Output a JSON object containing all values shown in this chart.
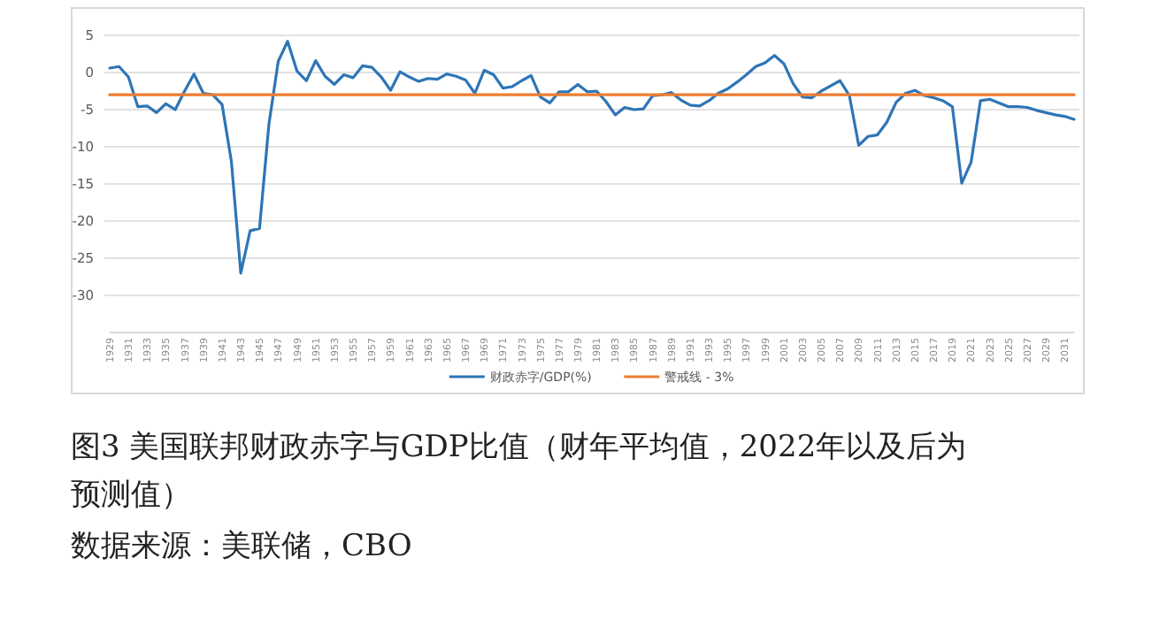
{
  "chart_data": {
    "type": "line",
    "title": "图3  美国联邦财政赤字与GDP比值（财年平均值，2022年以及后为预测值）",
    "annotations": [
      "数据来源：美联储，CBO"
    ],
    "categories": [
      "1929",
      null,
      "1931",
      null,
      "1933",
      null,
      "1935",
      null,
      "1937",
      null,
      "1939",
      null,
      "1941",
      null,
      "1943",
      null,
      "1945",
      null,
      "1947",
      null,
      "1949",
      null,
      "1951",
      null,
      "1953",
      null,
      "1955",
      null,
      "1957",
      null,
      "1959",
      null,
      "1961",
      null,
      "1963",
      null,
      "1965",
      null,
      "1967",
      null,
      "1969",
      null,
      "1971",
      null,
      "1973",
      null,
      "1975",
      null,
      "1977",
      null,
      "1979",
      null,
      "1981",
      null,
      "1983",
      null,
      "1985",
      null,
      "1987",
      null,
      "1989",
      null,
      "1991",
      null,
      "1993",
      null,
      "1995",
      null,
      "1997",
      null,
      "1999",
      null,
      "2001",
      null,
      "2003",
      null,
      "2005",
      null,
      "2007",
      null,
      "2009",
      null,
      "2011",
      null,
      "2013",
      null,
      "2015",
      null,
      "2017",
      null,
      "2019",
      null,
      "2021",
      null,
      "2023",
      null,
      "2025",
      null,
      "2027",
      null,
      "2029",
      null,
      "2031",
      null
    ],
    "series": [
      {
        "name": "财政赤字/GDP(%)",
        "color": "#2e75b6",
        "values": [
          0.6,
          0.8,
          -0.6,
          -4.6,
          -4.5,
          -5.4,
          -4.2,
          -5.0,
          -2.5,
          -0.2,
          -2.8,
          -3.0,
          -4.3,
          -12,
          -27,
          -21.3,
          -21,
          -7,
          1.5,
          4.2,
          0.2,
          -1.1,
          1.6,
          -0.5,
          -1.6,
          -0.3,
          -0.7,
          0.9,
          0.7,
          -0.6,
          -2.4,
          0.1,
          -0.6,
          -1.2,
          -0.8,
          -0.9,
          -0.2,
          -0.5,
          -1.0,
          -2.8,
          0.3,
          -0.3,
          -2.1,
          -1.9,
          -1.1,
          -0.4,
          -3.3,
          -4.1,
          -2.6,
          -2.6,
          -1.6,
          -2.6,
          -2.5,
          -3.9,
          -5.7,
          -4.7,
          -5.0,
          -4.9,
          -3.1,
          -3.0,
          -2.7,
          -3.7,
          -4.4,
          -4.5,
          -3.8,
          -2.8,
          -2.2,
          -1.3,
          -0.3,
          0.8,
          1.3,
          2.3,
          1.2,
          -1.5,
          -3.3,
          -3.4,
          -2.5,
          -1.8,
          -1.1,
          -3.1,
          -9.8,
          -8.6,
          -8.4,
          -6.7,
          -4.0,
          -2.8,
          -2.4,
          -3.1,
          -3.4,
          -3.8,
          -4.6,
          -14.9,
          -12.1,
          -3.8,
          -3.6,
          -4.1,
          -4.6,
          -4.6,
          -4.7,
          -5.1,
          -5.4,
          -5.7,
          -5.9,
          -6.3
        ]
      },
      {
        "name": "警戒线 - 3%",
        "color": "#ed7d31",
        "values": [
          -3,
          -3,
          -3,
          -3,
          -3,
          -3,
          -3,
          -3,
          -3,
          -3,
          -3,
          -3,
          -3,
          -3,
          -3,
          -3,
          -3,
          -3,
          -3,
          -3,
          -3,
          -3,
          -3,
          -3,
          -3,
          -3,
          -3,
          -3,
          -3,
          -3,
          -3,
          -3,
          -3,
          -3,
          -3,
          -3,
          -3,
          -3,
          -3,
          -3,
          -3,
          -3,
          -3,
          -3,
          -3,
          -3,
          -3,
          -3,
          -3,
          -3,
          -3,
          -3,
          -3,
          -3,
          -3,
          -3,
          -3,
          -3,
          -3,
          -3,
          -3,
          -3,
          -3,
          -3,
          -3,
          -3,
          -3,
          -3,
          -3,
          -3,
          -3,
          -3,
          -3,
          -3,
          -3,
          -3,
          -3,
          -3,
          -3,
          -3,
          -3,
          -3,
          -3,
          -3,
          -3,
          -3,
          -3,
          -3,
          -3,
          -3,
          -3,
          -3,
          -3,
          -3,
          -3,
          -3,
          -3,
          -3,
          -3,
          -3,
          -3,
          -3,
          -3,
          -3
        ]
      }
    ],
    "ylim": [
      -35,
      5
    ],
    "yticks": [
      5,
      0,
      -5,
      -10,
      -15,
      -20,
      -25,
      -30
    ],
    "grid": "y",
    "legend": "bottom",
    "marker": "none",
    "line_style": "solid"
  }
}
